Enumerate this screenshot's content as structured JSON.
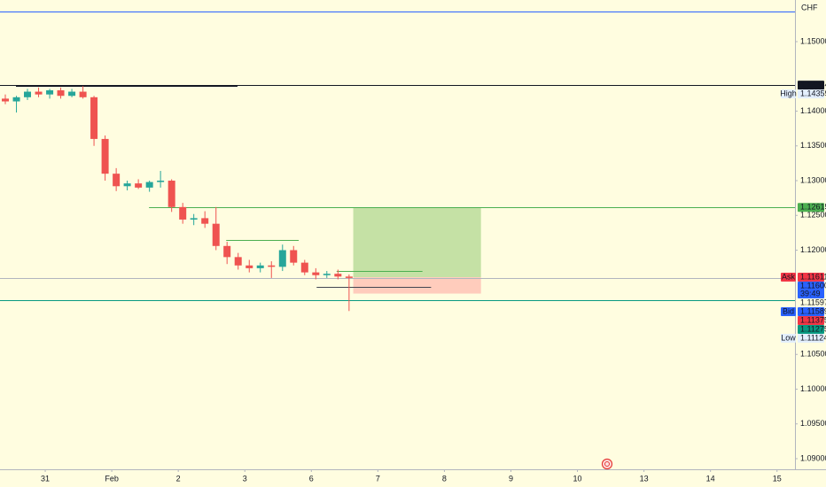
{
  "chart_data": {
    "type": "candlestick",
    "currency": "CHF",
    "up_color": "#26a69a",
    "down_color": "#ef5350",
    "grid": false,
    "xlim": [
      -0.68,
      11.27
    ],
    "ylim": [
      1.08847,
      1.15599
    ],
    "xticks": [
      {
        "value": 0,
        "label": "31"
      },
      {
        "value": 1,
        "label": "Feb"
      },
      {
        "value": 2,
        "label": "2"
      },
      {
        "value": 3,
        "label": "3"
      },
      {
        "value": 4,
        "label": "6"
      },
      {
        "value": 5,
        "label": "7"
      },
      {
        "value": 6,
        "label": "8"
      },
      {
        "value": 7,
        "label": "9"
      },
      {
        "value": 8,
        "label": "10"
      },
      {
        "value": 9,
        "label": "13"
      },
      {
        "value": 10,
        "label": "14"
      },
      {
        "value": 11,
        "label": "15"
      }
    ],
    "yticks": [
      {
        "value": 1.15,
        "label": "1.15000"
      },
      {
        "value": 1.14,
        "label": "1.14000"
      },
      {
        "value": 1.135,
        "label": "1.13500"
      },
      {
        "value": 1.13,
        "label": "1.13000"
      },
      {
        "value": 1.125,
        "label": "1.12500"
      },
      {
        "value": 1.12,
        "label": "1.12000"
      },
      {
        "value": 1.105,
        "label": "1.10500"
      },
      {
        "value": 1.1,
        "label": "1.10000"
      },
      {
        "value": 1.095,
        "label": "1.09500"
      },
      {
        "value": 1.09,
        "label": "1.09000"
      }
    ],
    "x": [
      -0.6,
      -0.433,
      -0.267,
      -0.1,
      0.067,
      0.233,
      0.4,
      0.567,
      0.733,
      0.9,
      1.067,
      1.233,
      1.4,
      1.567,
      1.733,
      1.9,
      2.067,
      2.233,
      2.4,
      2.567,
      2.733,
      2.9,
      3.067,
      3.233,
      3.4,
      3.567,
      3.733,
      3.9,
      4.067,
      4.233,
      4.4,
      4.567
    ],
    "open": [
      1.1418,
      1.1414,
      1.142,
      1.1428,
      1.1424,
      1.143,
      1.1422,
      1.1428,
      1.142,
      1.136,
      1.131,
      1.1292,
      1.1296,
      1.129,
      1.1298,
      1.13,
      1.1262,
      1.1244,
      1.1246,
      1.1238,
      1.1206,
      1.119,
      1.1178,
      1.1174,
      1.1178,
      1.1176,
      1.12,
      1.1182,
      1.1168,
      1.1164,
      1.1166,
      1.1162
    ],
    "high": [
      1.1424,
      1.1422,
      1.1432,
      1.1434,
      1.1432,
      1.1434,
      1.1432,
      1.1436,
      1.1422,
      1.1365,
      1.1318,
      1.13,
      1.1302,
      1.13,
      1.1314,
      1.1302,
      1.1268,
      1.1252,
      1.1256,
      1.1262,
      1.1212,
      1.1196,
      1.1186,
      1.1182,
      1.1184,
      1.1208,
      1.1206,
      1.1186,
      1.1174,
      1.117,
      1.1172,
      1.1165
    ],
    "low": [
      1.141,
      1.1398,
      1.1416,
      1.142,
      1.1418,
      1.1418,
      1.142,
      1.1418,
      1.135,
      1.13,
      1.1285,
      1.1286,
      1.1288,
      1.1284,
      1.129,
      1.1255,
      1.1238,
      1.1236,
      1.1232,
      1.12,
      1.118,
      1.1172,
      1.1168,
      1.1168,
      1.116,
      1.117,
      1.1178,
      1.1164,
      1.1158,
      1.116,
      1.1158,
      1.11124
    ],
    "close": [
      1.1414,
      1.142,
      1.1428,
      1.1424,
      1.143,
      1.1422,
      1.1428,
      1.142,
      1.136,
      1.131,
      1.1292,
      1.1296,
      1.129,
      1.1298,
      1.13,
      1.1262,
      1.1244,
      1.1246,
      1.1238,
      1.1206,
      1.119,
      1.1178,
      1.1174,
      1.1178,
      1.1176,
      1.12,
      1.1182,
      1.1168,
      1.1164,
      1.1166,
      1.1162,
      1.116
    ],
    "levels": [
      {
        "value": 1.1543,
        "color": "#2962ff"
      },
      {
        "value": 1.14374,
        "color": "#131722"
      },
      {
        "value": 1.1436,
        "color": "#131722",
        "x": [
          -0.44,
          2.89
        ]
      },
      {
        "value": 1.12615,
        "color": "#4caf50",
        "x": [
          1.56,
          11.27
        ]
      },
      {
        "value": 1.12146,
        "color": "#4caf50",
        "x": [
          2.72,
          3.81
        ]
      },
      {
        "value": 1.117,
        "color": "#4caf50",
        "x": [
          4.38,
          5.67
        ]
      },
      {
        "value": 1.1147,
        "color": "#434651",
        "x": [
          4.08,
          5.8
        ]
      },
      {
        "value": 1.116,
        "color": "#b2b5be"
      },
      {
        "value": 1.11275,
        "color": "#089981"
      }
    ],
    "position": {
      "x": [
        4.63,
        6.55
      ],
      "target": 1.12615,
      "entry": 1.11611,
      "stop": 1.11375,
      "profit_color": "#c5e1a5",
      "loss_color": "#ffccbc"
    },
    "price_tags": [
      {
        "label": "1.14374",
        "value": 1.14374,
        "bg": "#131722",
        "fg": "#ffffff"
      },
      {
        "side": "High",
        "label": "1.14359",
        "value": 1.14359,
        "bg": "#e3effd",
        "fg": "#131722"
      },
      {
        "label": "1.12615",
        "value": 1.12615,
        "bg": "#4caf50",
        "fg": "#ffffff"
      },
      {
        "side": "Ask",
        "label": "1.11611",
        "value": 1.11611,
        "bg": "#f23645",
        "fg": "#ffffff"
      },
      {
        "label": "1.11600",
        "value": 1.116,
        "bg": "#2962ff",
        "fg": "#ffffff",
        "sub": "39:49"
      },
      {
        "label": "1.11597",
        "value": 1.11597,
        "bg": "#fffde0",
        "fg": "#131722"
      },
      {
        "side": "Bid",
        "label": "1.11589",
        "value": 1.11589,
        "bg": "#2962ff",
        "fg": "#ffffff"
      },
      {
        "label": "1.11375",
        "value": 1.11375,
        "bg": "#f23645",
        "fg": "#ffffff"
      },
      {
        "label": "1.11275",
        "value": 1.11275,
        "bg": "#089981",
        "fg": "#ffffff"
      },
      {
        "side": "Low",
        "label": "1.11124",
        "value": 1.11124,
        "bg": "#e3effd",
        "fg": "#131722"
      }
    ]
  }
}
